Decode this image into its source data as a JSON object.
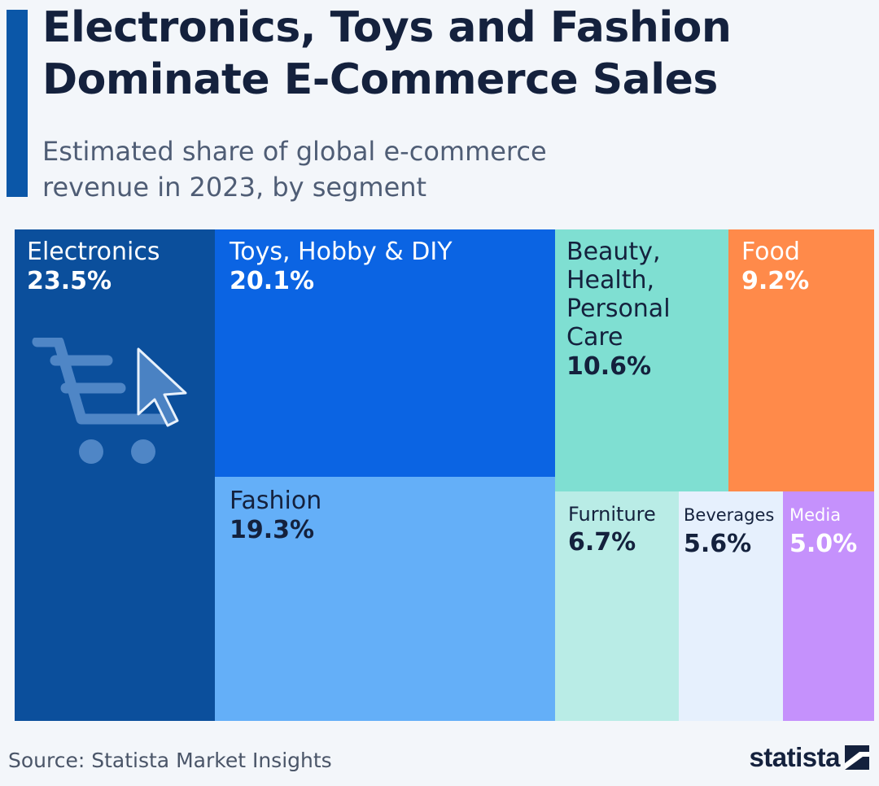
{
  "header": {
    "title": "Electronics, Toys and Fashion Dominate E-Commerce Sales",
    "subtitle": "Estimated share of global e-commerce revenue in 2023, by segment"
  },
  "chart_data": {
    "type": "treemap",
    "unit": "%",
    "segments": [
      {
        "name": "Electronics",
        "value": 23.5,
        "label": "23.5%",
        "color": "#0b4f9c",
        "text_color": "#ffffff"
      },
      {
        "name": "Toys, Hobby & DIY",
        "value": 20.1,
        "label": "20.1%",
        "color": "#0b64e3",
        "text_color": "#ffffff"
      },
      {
        "name": "Fashion",
        "value": 19.3,
        "label": "19.3%",
        "color": "#64aff8",
        "text_color": "#14213d"
      },
      {
        "name": "Beauty, Health, Personal Care",
        "value": 10.6,
        "label": "10.6%",
        "color": "#7fdfd2",
        "text_color": "#14213d"
      },
      {
        "name": "Food",
        "value": 9.2,
        "label": "9.2%",
        "color": "#ff8a4a",
        "text_color": "#ffffff"
      },
      {
        "name": "Furniture",
        "value": 6.7,
        "label": "6.7%",
        "color": "#b9ece6",
        "text_color": "#14213d"
      },
      {
        "name": "Beverages",
        "value": 5.6,
        "label": "5.6%",
        "color": "#e6f0fd",
        "text_color": "#14213d"
      },
      {
        "name": "Media",
        "value": 5.0,
        "label": "5.0%",
        "color": "#c591fc",
        "text_color": "#ffffff"
      }
    ]
  },
  "icons": {
    "cart": "shopping-cart-icon",
    "cursor": "mouse-cursor-icon"
  },
  "footer": {
    "source": "Source: Statista Market Insights",
    "brand": "statista"
  }
}
